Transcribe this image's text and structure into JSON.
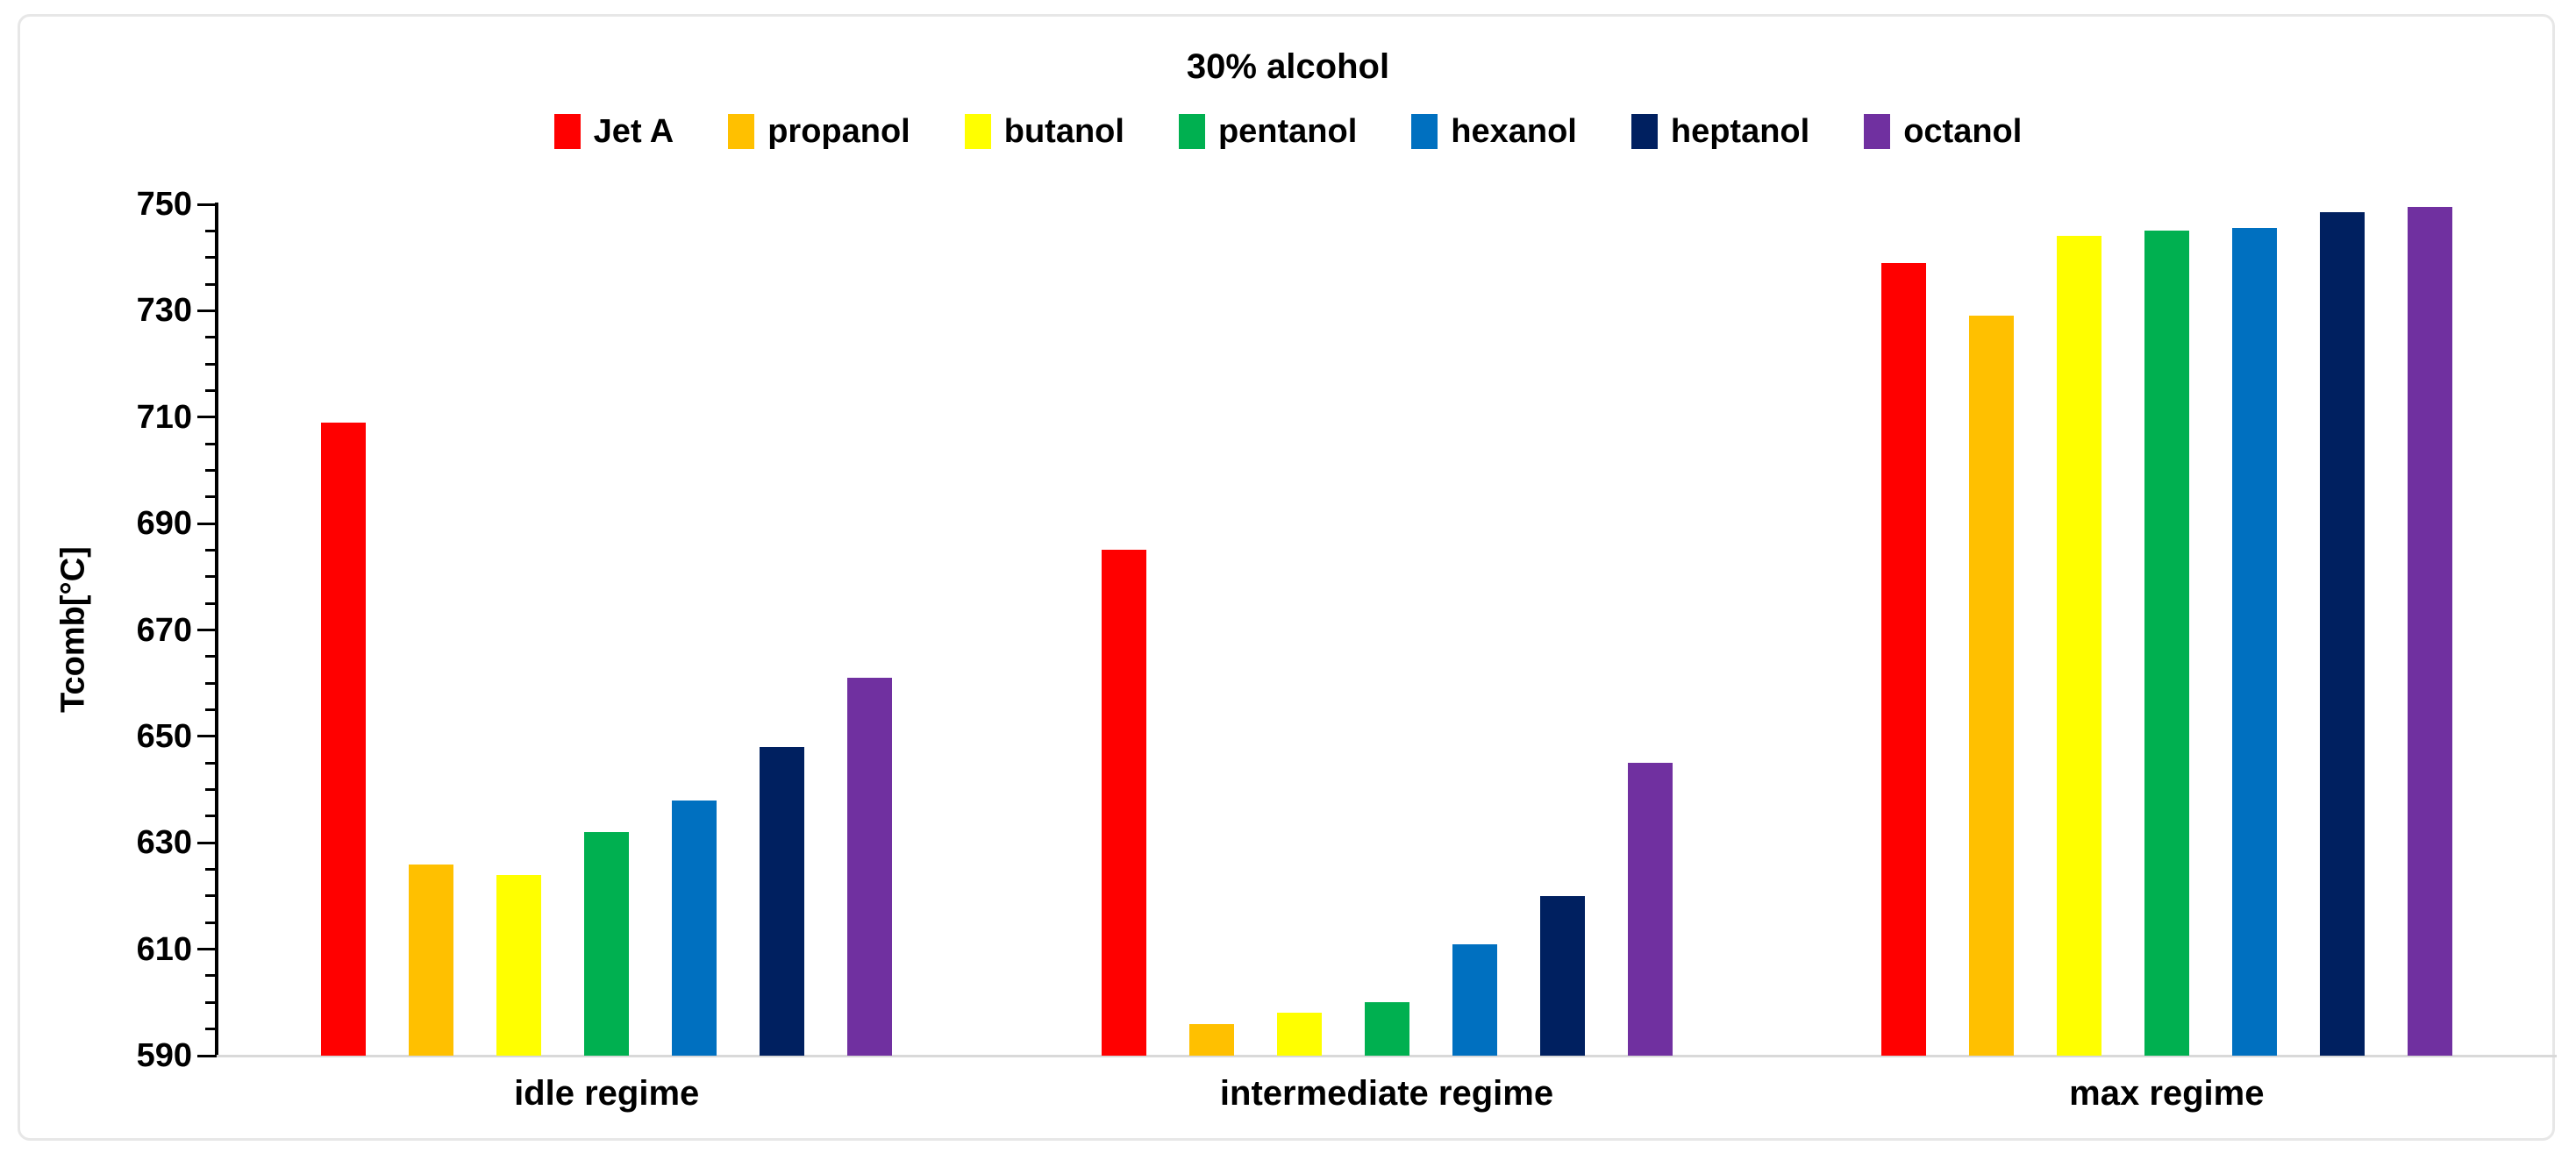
{
  "chart_data": {
    "type": "bar",
    "title": "30% alcohol",
    "ylabel": "Tcomb[°C]",
    "xlabel": "",
    "categories": [
      "idle regime",
      "intermediate regime",
      "max regime"
    ],
    "series": [
      {
        "name": "Jet A",
        "color": "#FF0000",
        "values": [
          709,
          685,
          739
        ]
      },
      {
        "name": "propanol",
        "color": "#FFC000",
        "values": [
          626,
          596,
          729
        ]
      },
      {
        "name": "butanol",
        "color": "#FFFF00",
        "values": [
          624,
          598,
          744
        ]
      },
      {
        "name": "pentanol",
        "color": "#00B050",
        "values": [
          632,
          600,
          745
        ]
      },
      {
        "name": "hexanol",
        "color": "#0070C0",
        "values": [
          638,
          611,
          745.5
        ]
      },
      {
        "name": "heptanol",
        "color": "#002060",
        "values": [
          648,
          620,
          748.5
        ]
      },
      {
        "name": "octanol",
        "color": "#7030A0",
        "values": [
          661,
          645,
          749.5
        ]
      }
    ],
    "ylim": [
      590,
      750
    ],
    "ytick_step": 20,
    "yminor_step": 5,
    "ytick_labels": [
      "590",
      "610",
      "630",
      "650",
      "670",
      "690",
      "710",
      "730",
      "750"
    ],
    "legend_position": "top",
    "grid": false,
    "axis_color": "#000000",
    "baseline_color": "#d9d9d9",
    "frame_border_color": "#e7e7e7",
    "background_color": "#ffffff"
  }
}
